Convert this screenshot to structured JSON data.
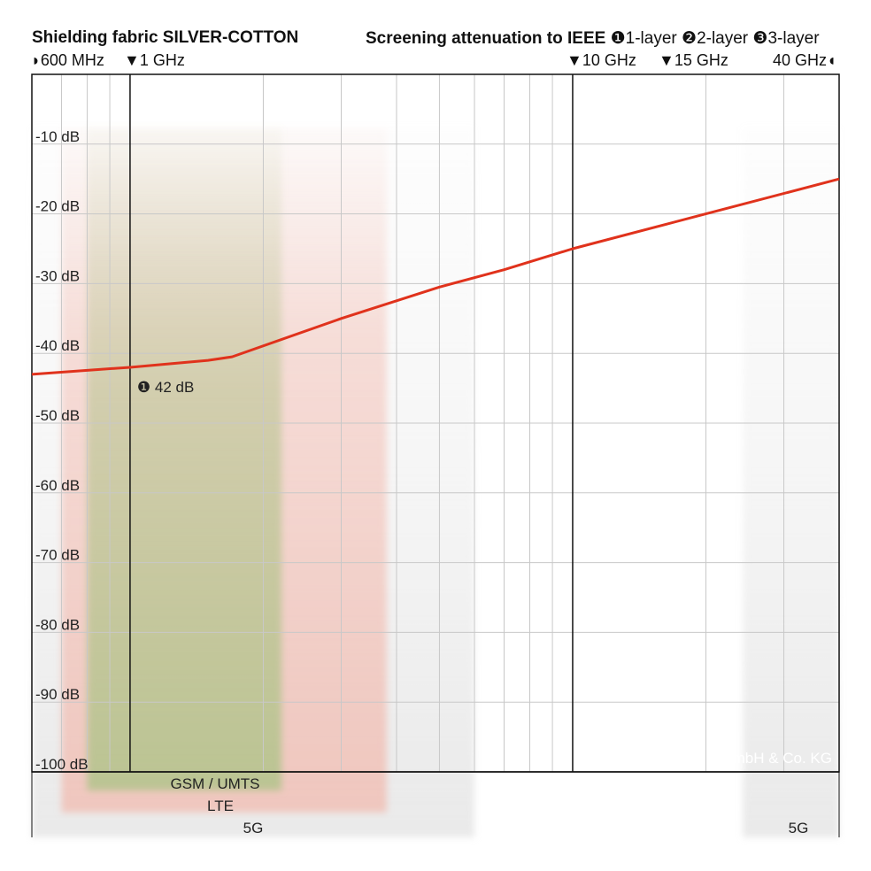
{
  "header": {
    "title": "Shielding fabric SILVER-COTTON",
    "legend_title": "Screening attenuation to IEEE",
    "legend_items": [
      {
        "glyph": "❶",
        "label": "1-layer"
      },
      {
        "glyph": "❷",
        "label": "2-layer"
      },
      {
        "glyph": "❸",
        "label": "3-layer"
      }
    ]
  },
  "markers": [
    {
      "glyph": "◗",
      "label": "600 MHz"
    },
    {
      "glyph": "▼",
      "label": "1 GHz"
    },
    {
      "glyph": "▼",
      "label": "10 GHz"
    },
    {
      "glyph": "▼",
      "label": "15 GHz"
    },
    {
      "glyph": "◖",
      "label": "40 GHz"
    }
  ],
  "chart_data": {
    "type": "line",
    "x_scale": "log",
    "x_unit": "GHz",
    "xlim": [
      0.6,
      40
    ],
    "ylim": [
      -100,
      0
    ],
    "grid": true,
    "y_ticks": [
      {
        "value": -10,
        "label": "-10 dB"
      },
      {
        "value": -20,
        "label": "-20 dB"
      },
      {
        "value": -30,
        "label": "-30 dB"
      },
      {
        "value": -40,
        "label": "-40 dB"
      },
      {
        "value": -50,
        "label": "-50 dB"
      },
      {
        "value": -60,
        "label": "-60 dB"
      },
      {
        "value": -70,
        "label": "-70 dB"
      },
      {
        "value": -80,
        "label": "-80 dB"
      },
      {
        "value": -90,
        "label": "-90 dB"
      },
      {
        "value": -100,
        "label": "-100 dB"
      }
    ],
    "series": [
      {
        "color": "#e0321c",
        "x": [
          0.6,
          1.0,
          1.5,
          1.7,
          3,
          5,
          7,
          10,
          20,
          40
        ],
        "y": [
          -43,
          -42,
          -41,
          -40.5,
          -35,
          -30.5,
          -28,
          -25,
          -20,
          -15
        ]
      }
    ],
    "vlines": [
      1,
      10
    ],
    "annotation": {
      "glyph": "❶",
      "text": "42 dB",
      "x": 1.0,
      "y": -42
    },
    "bands": [
      {
        "label": "GSM / UMTS",
        "x_range": [
          0.8,
          2.2
        ],
        "color": "#b5c48e"
      },
      {
        "label": "LTE",
        "x_range": [
          0.7,
          3.8
        ],
        "color": "#f2b3a6"
      },
      {
        "label": "5G",
        "x_range": [
          0.6,
          6.0
        ],
        "color": "#d8d8d8"
      },
      {
        "label": "5G",
        "x_range": [
          24.25,
          40
        ],
        "color": "#d8d8d8"
      }
    ],
    "copyright": "© YSHIELD GmbH & Co. KG"
  }
}
